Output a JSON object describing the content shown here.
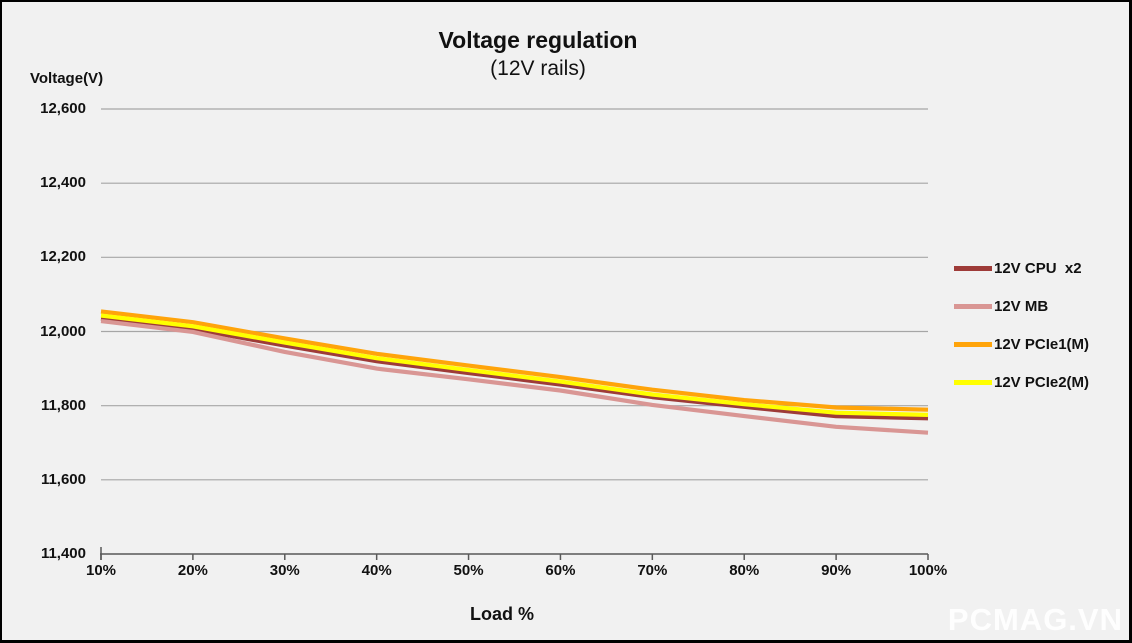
{
  "title": "Voltage regulation",
  "subtitle": "(12V rails)",
  "watermark": "PCMAG.VN",
  "colors": {
    "background": "#f1f1f1",
    "frame_border": "#000000",
    "gridline": "#a6a6a6",
    "axis": "#595959",
    "text": "#111111",
    "watermark": "#fbfbfb"
  },
  "chart_data": {
    "type": "line",
    "title": "Voltage regulation",
    "subtitle": "(12V rails)",
    "xlabel": "Load %",
    "ylabel": "Voltage(V)",
    "x": [
      10,
      20,
      30,
      40,
      50,
      60,
      70,
      80,
      90,
      100
    ],
    "x_tick_labels": [
      "10%",
      "20%",
      "30%",
      "40%",
      "50%",
      "60%",
      "70%",
      "80%",
      "90%",
      "100%"
    ],
    "ylim": [
      11400,
      12600
    ],
    "y_ticks": [
      11400,
      11600,
      11800,
      12000,
      12200,
      12400,
      12600
    ],
    "y_tick_labels": [
      "11,400",
      "11,600",
      "11,800",
      "12,000",
      "12,200",
      "12,400",
      "12,600"
    ],
    "grid": "horizontal",
    "legend_position": "right",
    "units": "mV",
    "series": [
      {
        "name": "12V CPU  x2",
        "color": "#9e3b38",
        "values": [
          12035,
          12007,
          11962,
          11920,
          11888,
          11857,
          11823,
          11797,
          11772,
          11766
        ]
      },
      {
        "name": "12V MB",
        "color": "#d99694",
        "values": [
          12028,
          11999,
          11945,
          11900,
          11871,
          11841,
          11802,
          11772,
          11743,
          11727
        ]
      },
      {
        "name": "12V PCIe1(M)",
        "color": "#ffa40a",
        "values": [
          12054,
          12025,
          11981,
          11940,
          11908,
          11877,
          11843,
          11815,
          11795,
          11789
        ]
      },
      {
        "name": "12V PCIe2(M)",
        "color": "#ffff00",
        "values": [
          12043,
          12014,
          11970,
          11928,
          11896,
          11865,
          11830,
          11804,
          11781,
          11775
        ]
      }
    ]
  }
}
